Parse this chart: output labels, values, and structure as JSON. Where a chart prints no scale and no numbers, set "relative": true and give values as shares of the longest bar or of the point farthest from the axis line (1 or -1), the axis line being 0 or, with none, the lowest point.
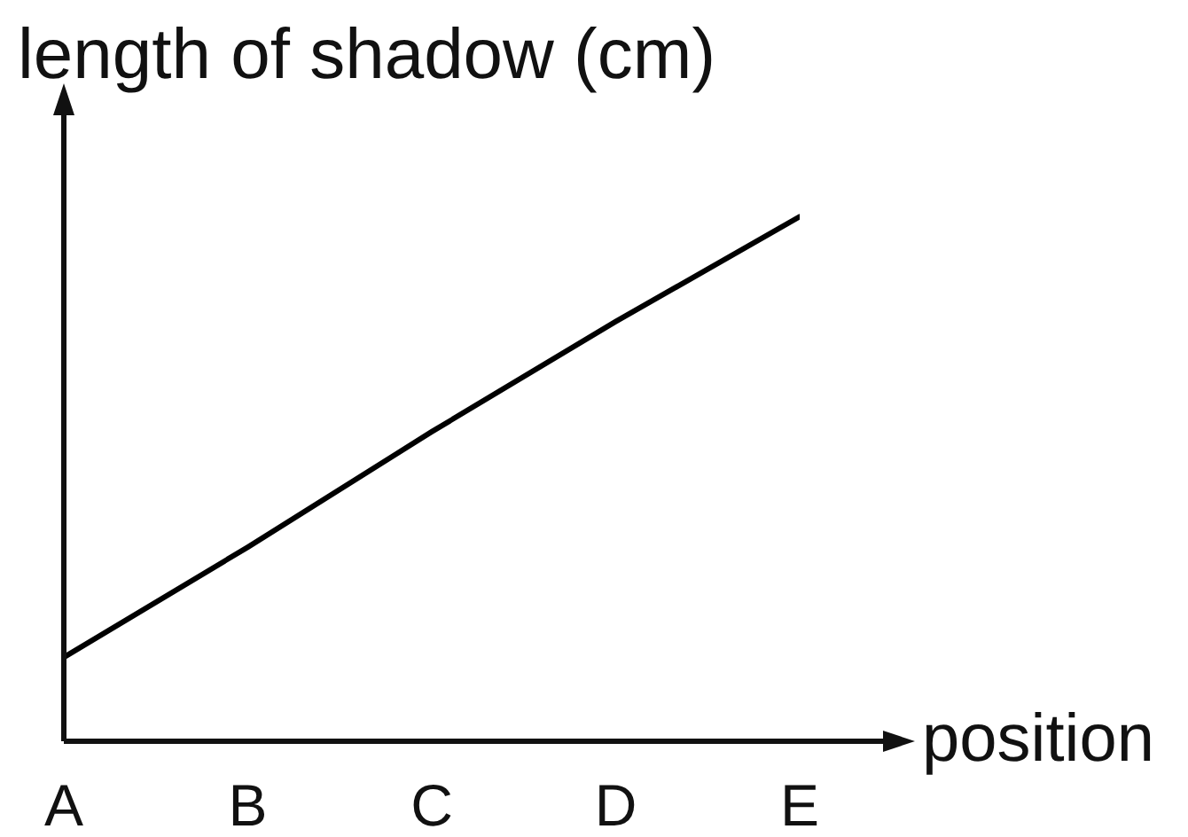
{
  "chart_data": {
    "type": "line",
    "xlabel": "position",
    "ylabel": "length of shadow (cm)",
    "categories": [
      "A",
      "B",
      "C",
      "D",
      "E"
    ],
    "values": [
      0.16,
      0.37,
      0.59,
      0.8,
      1
    ],
    "color": "#000000",
    "relative": true
  }
}
